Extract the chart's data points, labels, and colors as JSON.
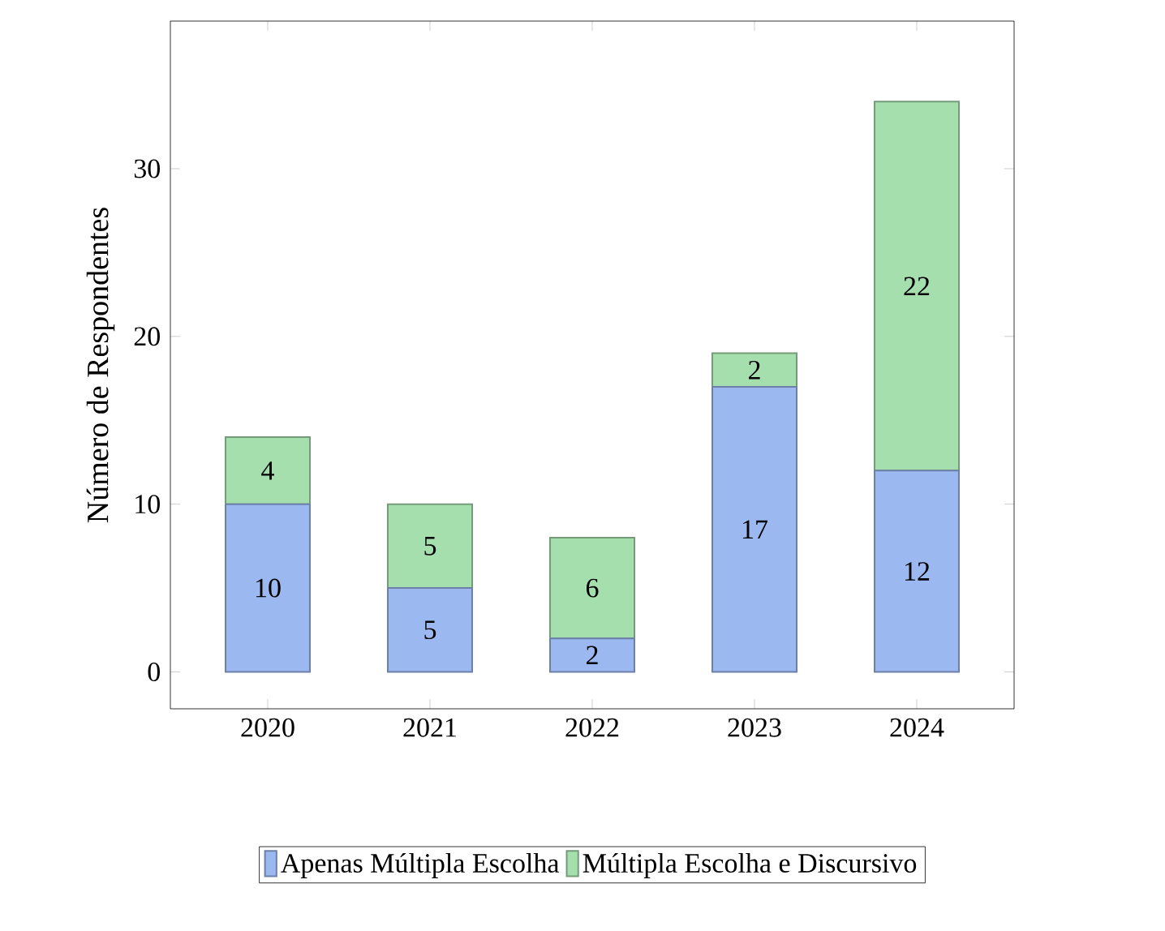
{
  "chart_data": {
    "type": "bar",
    "stacked": true,
    "ylabel": "Número de Respondentes",
    "categories": [
      "2020",
      "2021",
      "2022",
      "2023",
      "2024"
    ],
    "series": [
      {
        "name": "Apenas Múltipla Escolha",
        "color": "#9bb8f0",
        "values": [
          10,
          5,
          2,
          17,
          12
        ]
      },
      {
        "name": "Múltipla Escolha e Discursivo",
        "color": "#a6dfae",
        "values": [
          4,
          5,
          6,
          2,
          22
        ]
      }
    ],
    "ylim": [
      -2.2,
      38.8
    ],
    "yticks": [
      0,
      10,
      20,
      30
    ],
    "data_labels": true,
    "legend": "bottom",
    "grid": false
  }
}
